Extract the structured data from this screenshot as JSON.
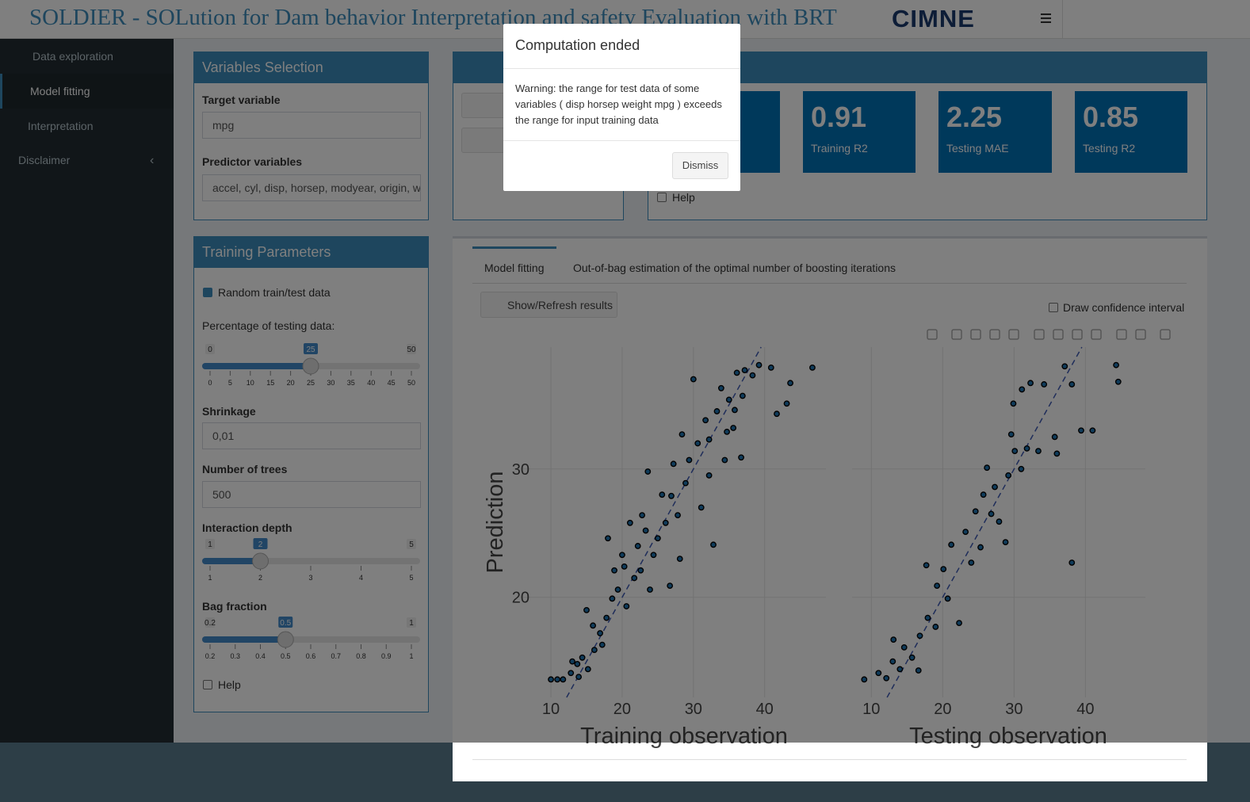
{
  "header": {
    "title": "SOLDIER - SOLution for Dam behavior Interpretation and safety Evaluation with BRT",
    "logo": "CIMNE"
  },
  "sidebar": {
    "items": [
      "Data exploration",
      "Model fitting",
      "Interpretation",
      "Disclaimer"
    ],
    "active": 1
  },
  "variables_box": {
    "title": "Variables Selection",
    "target_label": "Target variable",
    "target_value": "mpg",
    "predictor_label": "Predictor variables",
    "predictor_value": "accel, cyl, disp, horsep, modyear, origin, w"
  },
  "training_box": {
    "title": "Training Parameters",
    "random_label": "Random train/test data",
    "sliders": [
      {
        "label": "Percentage of testing data:",
        "min": 0,
        "max": 50,
        "value": 25,
        "ticks": [
          0,
          5,
          10,
          15,
          20,
          25,
          30,
          35,
          40,
          45,
          50
        ]
      },
      {
        "label": "Interaction depth",
        "min": 1,
        "max": 5,
        "value": 2,
        "ticks": [
          1,
          2,
          3,
          4,
          5
        ]
      },
      {
        "label": "Bag fraction",
        "min": 0.2,
        "max": 1,
        "value": 0.5,
        "ticks": [
          0.2,
          0.3,
          0.4,
          0.5,
          0.6,
          0.7,
          0.8,
          0.9,
          1
        ]
      }
    ],
    "inputs": [
      {
        "label": "Shrinkage",
        "value": "0,01"
      },
      {
        "label": "Number of trees",
        "value": 500
      }
    ],
    "help": "Help"
  },
  "metrics": {
    "items": [
      {
        "value": 0.91,
        "label": "Training R2"
      },
      {
        "value": 2.25,
        "label": "Testing MAE"
      },
      {
        "value": 0.85,
        "label": "Testing R2"
      }
    ],
    "help": "Help"
  },
  "results": {
    "tabs": [
      "Model fitting",
      "Out-of-bag estimation of the optimal number of boosting iterations"
    ],
    "button": "Show/Refresh results",
    "confidence_label": "Draw confidence interval"
  },
  "modal": {
    "title": "Computation ended",
    "body": "Warning: the range for test data of some variables ( disp horsep weight mpg ) exceeds the range for input training data",
    "button": "Dismiss"
  },
  "chart_data": [
    {
      "type": "scatter",
      "xlabel": "Training observation",
      "ylabel": "Prediction",
      "color": "#1f77b4",
      "diagonal": true,
      "grid": true,
      "xlim": [
        6.1,
        48.6
      ],
      "ylim": [
        12.2,
        39.5
      ],
      "xticks": [
        10,
        20,
        30,
        40
      ],
      "yticks": [
        20,
        30
      ],
      "ytick_labels": true,
      "x": [
        10,
        10.9,
        11.7,
        12.8,
        13.7,
        14.4,
        15.2,
        16.1,
        15,
        16.9,
        17.8,
        18,
        18.9,
        19.4,
        20,
        20.6,
        21.1,
        21.7,
        22.2,
        22.8,
        23.6,
        23.9,
        24.4,
        25,
        25.6,
        26.1,
        26.7,
        27.2,
        27.8,
        28.1,
        28.9,
        29.4,
        30,
        30.6,
        31.1,
        31.7,
        32.2,
        32.8,
        33.3,
        33.9,
        34.4,
        35,
        35.6,
        36.1,
        36.7,
        37.2,
        38.3,
        39.2,
        40.9,
        41.7,
        43.1,
        43.6,
        46.7,
        13,
        13.9,
        15.9,
        17.2,
        18.6,
        20.3,
        22.6,
        23.3,
        26.9,
        28.4,
        32.2,
        34.7,
        35.8,
        36.9
      ],
      "values": [
        13.6,
        13.6,
        13.6,
        14.1,
        14.8,
        15.3,
        14.4,
        15.9,
        19,
        17.2,
        18.4,
        24.6,
        22.1,
        20.6,
        23.3,
        19.3,
        25.8,
        21.5,
        24,
        26.4,
        29.8,
        20.6,
        23.3,
        24.6,
        28,
        25.8,
        20.9,
        30.4,
        26.4,
        23,
        28.9,
        30.7,
        37,
        32,
        27,
        33.8,
        29.5,
        24.1,
        34.5,
        36.3,
        30.7,
        35.4,
        33.2,
        37.5,
        30.9,
        37.7,
        37.3,
        38.1,
        37.9,
        34.3,
        35.1,
        36.7,
        37.9,
        15,
        13.8,
        17.8,
        16.3,
        19.9,
        22.4,
        22.1,
        25.2,
        27.9,
        32.7,
        32.3,
        32.9,
        34.6,
        35.7
      ]
    },
    {
      "type": "scatter",
      "xlabel": "Testing observation",
      "color": "#1f77b4",
      "diagonal": true,
      "grid": true,
      "xlim": [
        7.3,
        48.4
      ],
      "ylim": [
        12.2,
        39.5
      ],
      "xticks": [
        10,
        20,
        30,
        40
      ],
      "yticks": [
        20,
        30
      ],
      "ytick_labels": false,
      "x": [
        9,
        11,
        12.1,
        13,
        14,
        13.1,
        14.6,
        15.7,
        16.6,
        16.8,
        17.7,
        17.9,
        19,
        19.2,
        20.1,
        20.7,
        21.2,
        22.3,
        23.2,
        24,
        24.6,
        25.3,
        25.7,
        26.2,
        26.8,
        27.3,
        27.9,
        28.8,
        29.2,
        29.6,
        30.1,
        29.9,
        31,
        31.1,
        31.8,
        32.3,
        33.4,
        34.2,
        35.7,
        37.1,
        38.1,
        38.1,
        39.4,
        41,
        44.3,
        44.6,
        36
      ],
      "values": [
        13.6,
        14.1,
        13.7,
        15,
        14.4,
        16.7,
        16.1,
        15.3,
        14.3,
        17,
        22.5,
        18.4,
        17.7,
        20.9,
        22.2,
        19.9,
        24.1,
        18,
        25.1,
        22.7,
        26.7,
        23.9,
        28,
        30.1,
        26.5,
        28.6,
        25.9,
        24.3,
        29.5,
        32.7,
        31.4,
        35.1,
        30,
        36.2,
        31.6,
        36.7,
        31.4,
        36.6,
        32.5,
        38,
        22.7,
        36.6,
        33,
        33,
        38.1,
        36.8,
        31.2
      ]
    }
  ]
}
